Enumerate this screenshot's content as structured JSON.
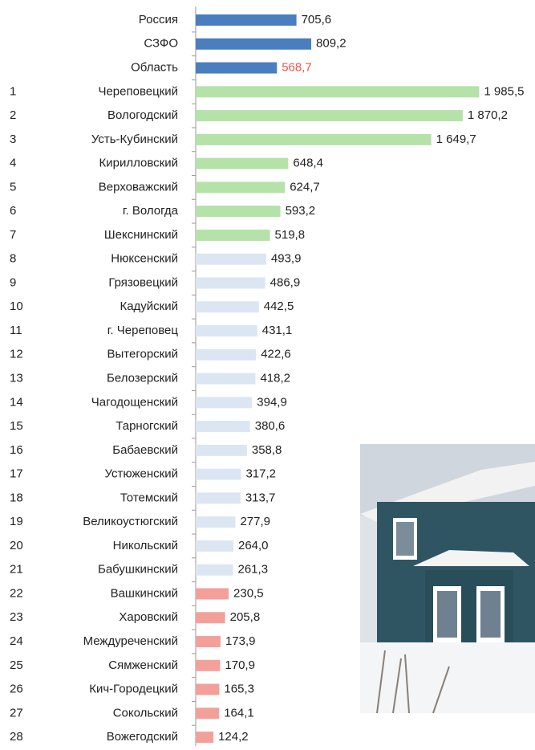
{
  "chart_data": {
    "type": "bar",
    "orientation": "horizontal",
    "ranks": [
      null,
      null,
      null,
      "1",
      "2",
      "3",
      "4",
      "5",
      "6",
      "7",
      "8",
      "9",
      "10",
      "11",
      "12",
      "13",
      "14",
      "15",
      "16",
      "17",
      "18",
      "19",
      "20",
      "21",
      "22",
      "23",
      "24",
      "25",
      "26",
      "27",
      "28"
    ],
    "categories": [
      "Россия",
      "СЗФО",
      "Область",
      "Череповецкий",
      "Вологодский",
      "Усть-Кубинский",
      "Кирилловский",
      "Верховажский",
      "г. Вологда",
      "Шекснинский",
      "Нюксенский",
      "Грязовецкий",
      "Кадуйский",
      "г. Череповец",
      "Вытегорский",
      "Белозерский",
      "Чагодощенский",
      "Тарногский",
      "Бабаевский",
      "Устюженский",
      "Тотемский",
      "Великоустюгский",
      "Никольский",
      "Бабушкинский",
      "Вашкинский",
      "Харовский",
      "Междуреченский",
      "Сямженский",
      "Кич-Городецкий",
      "Сокольский",
      "Вожегодский"
    ],
    "values": [
      705.6,
      809.2,
      568.7,
      1985.5,
      1870.2,
      1649.7,
      648.4,
      624.7,
      593.2,
      519.8,
      493.9,
      486.9,
      442.5,
      431.1,
      422.6,
      418.2,
      394.9,
      380.6,
      358.8,
      317.2,
      313.7,
      277.9,
      264.0,
      261.3,
      230.5,
      205.8,
      173.9,
      170.9,
      165.3,
      164.1,
      124.2
    ],
    "value_labels": [
      "705,6",
      "809,2",
      "568,7",
      "1 985,5",
      "1 870,2",
      "1 649,7",
      "648,4",
      "624,7",
      "593,2",
      "519,8",
      "493,9",
      "486,9",
      "442,5",
      "431,1",
      "422,6",
      "418,2",
      "394,9",
      "380,6",
      "358,8",
      "317,2",
      "313,7",
      "277,9",
      "264,0",
      "261,3",
      "230,5",
      "205,8",
      "173,9",
      "170,9",
      "165,3",
      "164,1",
      "124,2"
    ],
    "colors": [
      "#4a7ebf",
      "#4a7ebf",
      "#4a7ebf",
      "#b5e2a8",
      "#b5e2a8",
      "#b5e2a8",
      "#b5e2a8",
      "#b5e2a8",
      "#b5e2a8",
      "#b5e2a8",
      "#dce6f2",
      "#dce6f2",
      "#dce6f2",
      "#dce6f2",
      "#dce6f2",
      "#dce6f2",
      "#dce6f2",
      "#dce6f2",
      "#dce6f2",
      "#dce6f2",
      "#dce6f2",
      "#dce6f2",
      "#dce6f2",
      "#dce6f2",
      "#f4a09a",
      "#f4a09a",
      "#f4a09a",
      "#f4a09a",
      "#f4a09a",
      "#f4a09a",
      "#f4a09a"
    ],
    "value_label_colors": [
      "#222",
      "#222",
      "#f0564a",
      "#222",
      "#222",
      "#222",
      "#222",
      "#222",
      "#222",
      "#222",
      "#222",
      "#222",
      "#222",
      "#222",
      "#222",
      "#222",
      "#222",
      "#222",
      "#222",
      "#222",
      "#222",
      "#222",
      "#222",
      "#222",
      "#222",
      "#222",
      "#222",
      "#222",
      "#222",
      "#222",
      "#222"
    ],
    "xlim": [
      0,
      2000
    ]
  }
}
